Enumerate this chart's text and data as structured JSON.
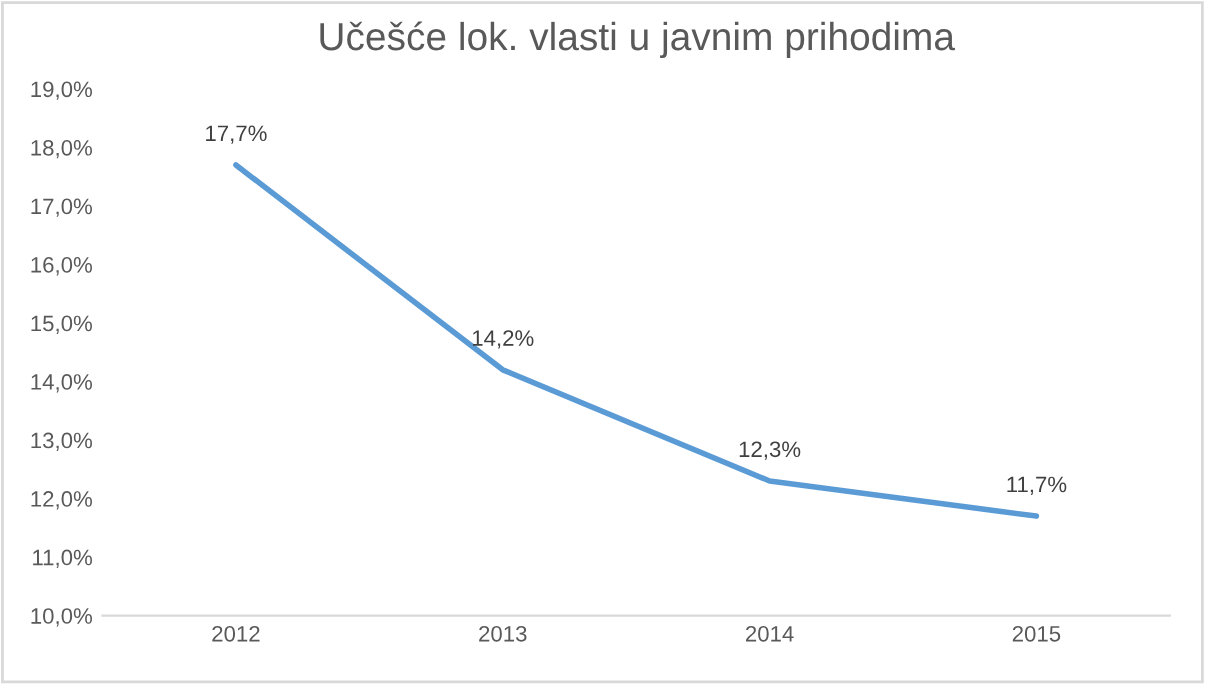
{
  "chart_data": {
    "type": "line",
    "title": "Učešće lok. vlasti u javnim prihodima",
    "categories": [
      "2012",
      "2013",
      "2014",
      "2015"
    ],
    "series": [
      {
        "color": "#5b9bd5",
        "values": [
          17.7,
          14.2,
          12.3,
          11.7
        ],
        "value_labels": [
          "17,7%",
          "14,2%",
          "12,3%",
          "11,7%"
        ]
      }
    ],
    "ylim": [
      10,
      19
    ],
    "yticks": [
      {
        "value": 10,
        "label": "10,0%"
      },
      {
        "value": 11,
        "label": "11,0%"
      },
      {
        "value": 12,
        "label": "12,0%"
      },
      {
        "value": 13,
        "label": "13,0%"
      },
      {
        "value": 14,
        "label": "14,0%"
      },
      {
        "value": 15,
        "label": "15,0%"
      },
      {
        "value": 16,
        "label": "16,0%"
      },
      {
        "value": 17,
        "label": "17,0%"
      },
      {
        "value": 18,
        "label": "18,0%"
      },
      {
        "value": 19,
        "label": "19,0%"
      }
    ],
    "grid": false,
    "marker": "none",
    "line_style": "solid"
  }
}
